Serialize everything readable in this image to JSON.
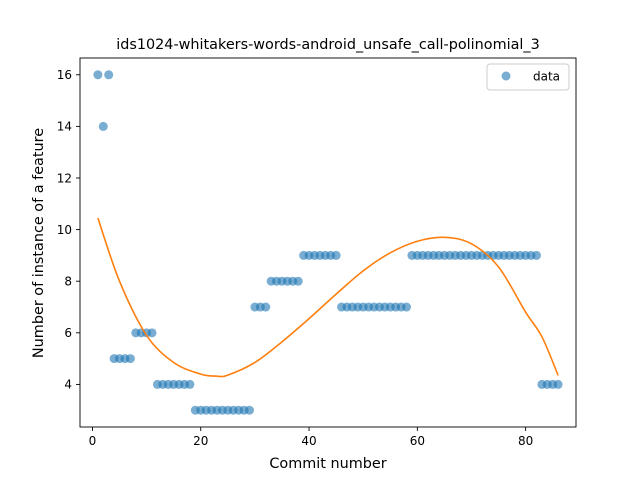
{
  "chart_data": {
    "type": "scatter",
    "title": "ids1024-whitakers-words-android_unsafe_call-polinomial_3",
    "xlabel": "Commit number",
    "ylabel": "Number of instance of a feature",
    "xlim": [
      -2.3,
      89.3
    ],
    "ylim": [
      2.35,
      16.65
    ],
    "xticks": [
      0,
      20,
      40,
      60,
      80
    ],
    "yticks": [
      4,
      6,
      8,
      10,
      12,
      14,
      16
    ],
    "grid": false,
    "legend": {
      "position": "upper right",
      "entries": [
        "data"
      ]
    },
    "series": [
      {
        "name": "data",
        "kind": "scatter",
        "color": "#1f77b4",
        "x": [
          1,
          2,
          3,
          4,
          5,
          6,
          7,
          8,
          9,
          10,
          11,
          12,
          13,
          14,
          15,
          16,
          17,
          18,
          19,
          20,
          21,
          22,
          23,
          24,
          25,
          26,
          27,
          28,
          29,
          30,
          31,
          32,
          33,
          34,
          35,
          36,
          37,
          38,
          39,
          40,
          41,
          42,
          43,
          44,
          45,
          46,
          47,
          48,
          49,
          50,
          51,
          52,
          53,
          54,
          55,
          56,
          57,
          58,
          59,
          60,
          61,
          62,
          63,
          64,
          65,
          66,
          67,
          68,
          69,
          70,
          71,
          72,
          73,
          74,
          75,
          76,
          77,
          78,
          79,
          80,
          81,
          82,
          83,
          84,
          85,
          86
        ],
        "y": [
          16,
          14,
          16,
          5,
          5,
          5,
          5,
          6,
          6,
          6,
          6,
          4,
          4,
          4,
          4,
          4,
          4,
          4,
          3,
          3,
          3,
          3,
          3,
          3,
          3,
          3,
          3,
          3,
          3,
          7,
          7,
          7,
          8,
          8,
          8,
          8,
          8,
          8,
          9,
          9,
          9,
          9,
          9,
          9,
          9,
          7,
          7,
          7,
          7,
          7,
          7,
          7,
          7,
          7,
          7,
          7,
          7,
          7,
          9,
          9,
          9,
          9,
          9,
          9,
          9,
          9,
          9,
          9,
          9,
          9,
          9,
          9,
          9,
          9,
          9,
          9,
          9,
          9,
          9,
          9,
          9,
          9,
          4,
          4,
          4,
          4
        ]
      },
      {
        "name": "",
        "kind": "line",
        "color": "#ff7f0e",
        "x": [
          1,
          5,
          10,
          15,
          20,
          23,
          25,
          30,
          35,
          40,
          45,
          50,
          55,
          60,
          65,
          70,
          75,
          80,
          83,
          86
        ],
        "y": [
          10.45,
          8.0,
          5.9,
          4.85,
          4.4,
          4.32,
          4.36,
          4.85,
          5.65,
          6.55,
          7.5,
          8.4,
          9.1,
          9.55,
          9.7,
          9.45,
          8.55,
          6.8,
          5.85,
          4.35
        ]
      }
    ]
  }
}
